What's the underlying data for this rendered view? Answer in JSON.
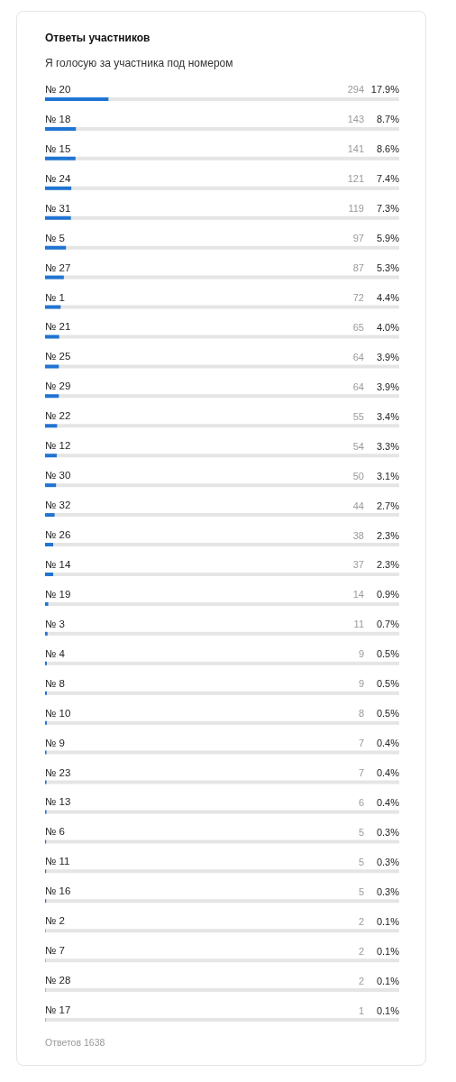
{
  "chart_data": {
    "type": "bar",
    "orientation": "horizontal",
    "title": "Ответы участников",
    "subtitle": "Я голосую за участника под номером",
    "annotations": [
      "294",
      "143",
      "141",
      "121",
      "119",
      "97",
      "87",
      "72",
      "65",
      "64",
      "64",
      "55",
      "54",
      "50",
      "44",
      "38",
      "37",
      "14",
      "11",
      "9",
      "9",
      "8",
      "7",
      "7",
      "6",
      "5",
      "5",
      "5",
      "2",
      "2",
      "2",
      "1",
      "Ответов 1638"
    ],
    "categories": [
      "№ 20",
      "№ 18",
      "№ 15",
      "№ 24",
      "№ 31",
      "№ 5",
      "№ 27",
      "№ 1",
      "№ 21",
      "№ 25",
      "№ 29",
      "№ 22",
      "№ 12",
      "№ 30",
      "№ 32",
      "№ 26",
      "№ 14",
      "№ 19",
      "№ 3",
      "№ 4",
      "№ 8",
      "№ 10",
      "№ 9",
      "№ 23",
      "№ 13",
      "№ 6",
      "№ 11",
      "№ 16",
      "№ 2",
      "№ 7",
      "№ 28",
      "№ 17"
    ],
    "values": [
      17.9,
      8.7,
      8.6,
      7.4,
      7.3,
      5.9,
      5.3,
      4.4,
      4.0,
      3.9,
      3.9,
      3.4,
      3.3,
      3.1,
      2.7,
      2.3,
      2.3,
      0.9,
      0.7,
      0.5,
      0.5,
      0.5,
      0.4,
      0.4,
      0.4,
      0.3,
      0.3,
      0.3,
      0.1,
      0.1,
      0.1,
      0.1
    ],
    "value_labels": [
      "17.9%",
      "8.7%",
      "8.6%",
      "7.4%",
      "7.3%",
      "5.9%",
      "5.3%",
      "4.4%",
      "4.0%",
      "3.9%",
      "3.9%",
      "3.4%",
      "3.3%",
      "3.1%",
      "2.7%",
      "2.3%",
      "2.3%",
      "0.9%",
      "0.7%",
      "0.5%",
      "0.5%",
      "0.5%",
      "0.4%",
      "0.4%",
      "0.4%",
      "0.3%",
      "0.3%",
      "0.3%",
      "0.1%",
      "0.1%",
      "0.1%",
      "0.1%"
    ],
    "color": "#1f74d2",
    "xlim": [
      0,
      100
    ],
    "tick_labels": "y"
  }
}
